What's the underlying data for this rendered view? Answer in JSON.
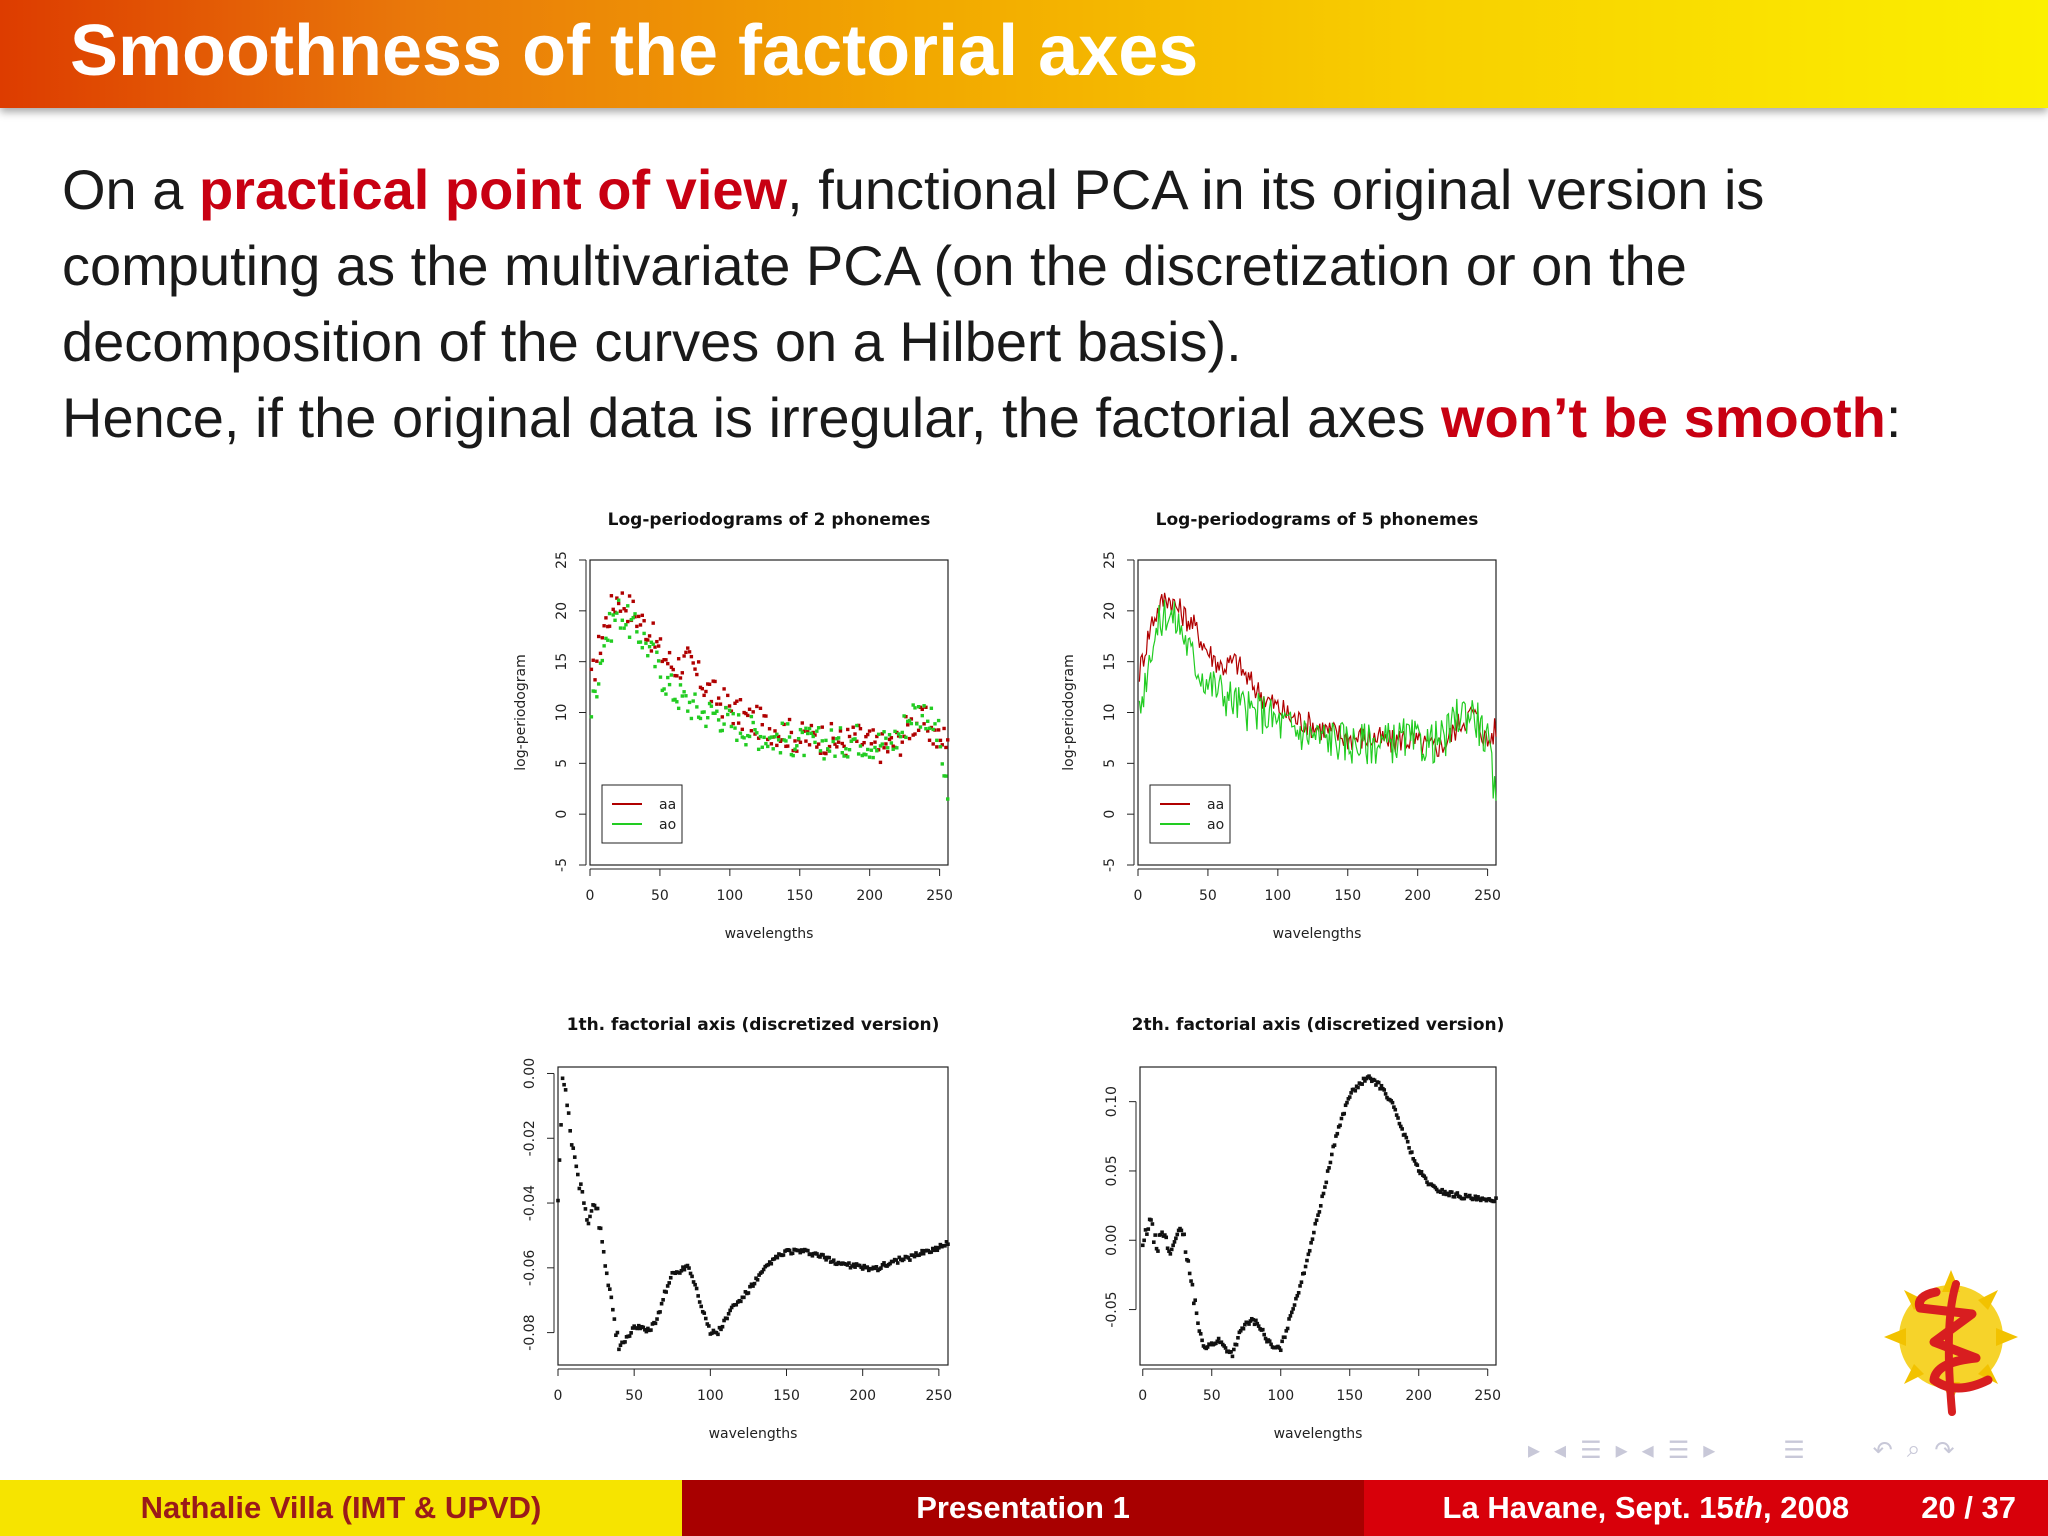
{
  "slide": {
    "title": "Smoothness of the factorial axes",
    "para1": {
      "pre": "On a ",
      "highlight": "practical point of view",
      "post": ", functional PCA in its original version is computing as the multivariate PCA (on the discretization or on the decomposition of the curves on a Hilbert basis)."
    },
    "para2": {
      "pre": "Hence, if the original data is irregular, the factorial axes ",
      "highlight": "won’t be smooth",
      "post": ":"
    }
  },
  "footer": {
    "author": "Nathalie Villa  (IMT & UPVD)",
    "presentation": "Presentation 1",
    "place": "La Havane, Sept. 15",
    "place_sup": "th",
    "year": ", 2008",
    "page": "20 / 37"
  },
  "colors": {
    "accent_red": "#c80012",
    "aa": "#b00000",
    "ao": "#22cc22"
  },
  "nav_icons": [
    "nav-first-icon",
    "nav-prev-frame-icon",
    "nav-section-icon",
    "nav-next-frame-icon",
    "nav-prev-icon",
    "nav-subsection-icon",
    "nav-next-icon",
    "nav-doc-icon",
    "nav-back-icon",
    "nav-search-icon",
    "nav-forward-icon"
  ],
  "chart_data": [
    {
      "type": "scatter",
      "title": "Log-periodograms of 2 phonemes",
      "xlabel": "wavelengths",
      "ylabel": "log-periodogram",
      "xlim": [
        0,
        256
      ],
      "ylim": [
        -5,
        25
      ],
      "xticks": [
        0,
        50,
        100,
        150,
        200,
        250
      ],
      "yticks": [
        -5,
        0,
        5,
        10,
        15,
        20,
        25
      ],
      "legend": {
        "placement": "bottom-left",
        "entries": [
          "aa",
          "ao"
        ]
      },
      "x": [
        1,
        10,
        20,
        30,
        40,
        50,
        60,
        70,
        80,
        90,
        100,
        110,
        120,
        130,
        140,
        150,
        160,
        170,
        180,
        190,
        200,
        210,
        220,
        230,
        240,
        250,
        256
      ],
      "series": [
        {
          "name": "aa",
          "values": [
            13,
            18.5,
            21.5,
            20,
            18.5,
            16,
            14.5,
            15,
            13,
            11.5,
            10.5,
            9.5,
            9,
            8.5,
            8,
            7.5,
            7.5,
            7.5,
            7,
            7.5,
            7,
            6.5,
            7,
            9,
            9,
            7,
            8
          ]
        },
        {
          "name": "ao",
          "values": [
            10,
            17,
            20,
            18.5,
            17,
            14,
            12,
            11,
            10,
            10,
            9,
            8.5,
            8,
            7.5,
            7.5,
            7,
            7,
            7,
            7,
            7.5,
            7,
            7,
            7.5,
            10,
            10,
            7.5,
            0.5
          ]
        }
      ]
    },
    {
      "type": "line",
      "title": "Log-periodograms of 5 phonemes",
      "xlabel": "wavelengths",
      "ylabel": "log-periodogram",
      "xlim": [
        0,
        256
      ],
      "ylim": [
        -5,
        25
      ],
      "xticks": [
        0,
        50,
        100,
        150,
        200,
        250
      ],
      "yticks": [
        -5,
        0,
        5,
        10,
        15,
        20,
        25
      ],
      "legend": {
        "placement": "bottom-left",
        "entries": [
          "aa",
          "ao"
        ]
      },
      "x": [
        1,
        10,
        20,
        30,
        40,
        50,
        60,
        70,
        80,
        90,
        100,
        110,
        120,
        130,
        140,
        150,
        160,
        170,
        180,
        190,
        200,
        210,
        220,
        230,
        240,
        250,
        256
      ],
      "series": [
        {
          "name": "aa",
          "values": [
            14,
            19,
            21.5,
            20,
            18.5,
            16,
            14.5,
            15,
            13,
            11.5,
            10.5,
            9.5,
            9,
            8.5,
            8,
            7.5,
            7.5,
            7.5,
            7,
            7.5,
            7,
            6.5,
            7,
            9,
            10,
            7,
            8.5
          ]
        },
        {
          "name": "ao",
          "values": [
            10,
            17,
            20,
            18.5,
            15,
            13,
            12,
            11,
            10,
            10,
            9,
            8.5,
            8,
            7.5,
            7.5,
            7,
            7,
            7,
            7,
            7.5,
            7,
            7,
            7.5,
            10,
            10,
            7,
            1
          ]
        }
      ]
    },
    {
      "type": "scatter",
      "title": "1th. factorial axis (discretized version)",
      "xlabel": "wavelengths",
      "ylabel": "",
      "xlim": [
        0,
        256
      ],
      "ylim": [
        -0.09,
        0.002
      ],
      "xticks": [
        0,
        50,
        100,
        150,
        200,
        250
      ],
      "yticks": [
        -0.08,
        -0.06,
        -0.04,
        -0.02,
        0.0
      ],
      "ytick_labels": [
        "-0.08",
        "-0.06",
        "-0.04",
        "-0.02",
        "0.00"
      ],
      "x": [
        0,
        3,
        6,
        10,
        15,
        20,
        25,
        30,
        35,
        40,
        45,
        50,
        55,
        60,
        65,
        70,
        75,
        80,
        85,
        90,
        95,
        100,
        105,
        110,
        115,
        120,
        130,
        140,
        150,
        160,
        170,
        180,
        190,
        200,
        210,
        220,
        230,
        240,
        250,
        256
      ],
      "values": [
        -0.038,
        -0.003,
        -0.008,
        -0.025,
        -0.036,
        -0.045,
        -0.04,
        -0.055,
        -0.07,
        -0.085,
        -0.082,
        -0.078,
        -0.079,
        -0.079,
        -0.076,
        -0.068,
        -0.062,
        -0.061,
        -0.059,
        -0.065,
        -0.073,
        -0.08,
        -0.08,
        -0.076,
        -0.072,
        -0.07,
        -0.064,
        -0.058,
        -0.055,
        -0.055,
        -0.056,
        -0.058,
        -0.059,
        -0.06,
        -0.06,
        -0.058,
        -0.057,
        -0.055,
        -0.054,
        -0.052
      ]
    },
    {
      "type": "scatter",
      "title": "2th. factorial axis (discretized version)",
      "xlabel": "wavelengths",
      "ylabel": "",
      "xlim": [
        -2,
        256
      ],
      "ylim": [
        -0.09,
        0.125
      ],
      "xticks": [
        0,
        50,
        100,
        150,
        200,
        250
      ],
      "yticks": [
        -0.05,
        0.0,
        0.05,
        0.1
      ],
      "ytick_labels": [
        "-0.05",
        "0.00",
        "0.05",
        "0.10"
      ],
      "x": [
        0,
        5,
        10,
        15,
        20,
        25,
        30,
        35,
        40,
        45,
        50,
        55,
        60,
        65,
        70,
        75,
        80,
        85,
        90,
        95,
        100,
        105,
        110,
        115,
        120,
        130,
        140,
        150,
        160,
        165,
        170,
        175,
        180,
        190,
        200,
        210,
        220,
        230,
        240,
        250,
        256
      ],
      "values": [
        -0.005,
        0.015,
        -0.005,
        0.005,
        -0.01,
        0.008,
        0.0,
        -0.03,
        -0.06,
        -0.078,
        -0.075,
        -0.072,
        -0.078,
        -0.082,
        -0.068,
        -0.06,
        -0.058,
        -0.062,
        -0.072,
        -0.078,
        -0.078,
        -0.062,
        -0.045,
        -0.03,
        -0.01,
        0.03,
        0.075,
        0.105,
        0.115,
        0.117,
        0.113,
        0.108,
        0.1,
        0.075,
        0.05,
        0.038,
        0.034,
        0.032,
        0.03,
        0.028,
        0.03
      ]
    }
  ]
}
